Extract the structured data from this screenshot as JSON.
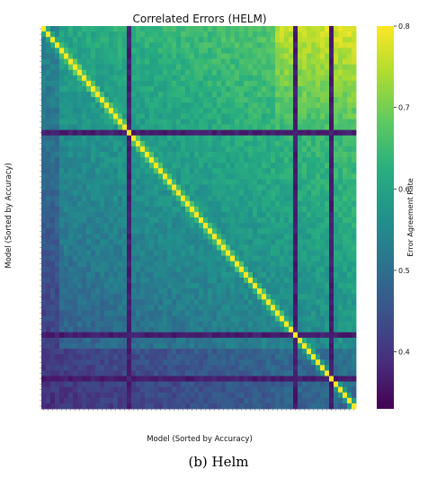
{
  "chart_data": {
    "type": "heatmap",
    "title": "Correlated Errors (HELM)",
    "xlabel": "Model (Sorted by Accuracy)",
    "ylabel": "Model (Sorted by Accuracy)",
    "colorbar": {
      "label": "Error Agreement Rate",
      "range": [
        0.33,
        0.8
      ],
      "ticks": [
        0.4,
        0.5,
        0.6,
        0.7,
        0.8
      ],
      "colormap": "viridis"
    },
    "n_models": 70,
    "diagonal_value": 0.8,
    "outlier_model_indices": [
      19,
      56,
      64
    ],
    "outlier_value": 0.35,
    "block_patterns": [
      {
        "region": "top-right (highest-accuracy models)",
        "approx_value": 0.77
      },
      {
        "region": "middle band",
        "approx_value": 0.6
      },
      {
        "region": "bottom rows (lowest-accuracy models)",
        "approx_value": 0.47
      }
    ],
    "tick_labels_legible": false
  },
  "caption": "(b) Helm"
}
